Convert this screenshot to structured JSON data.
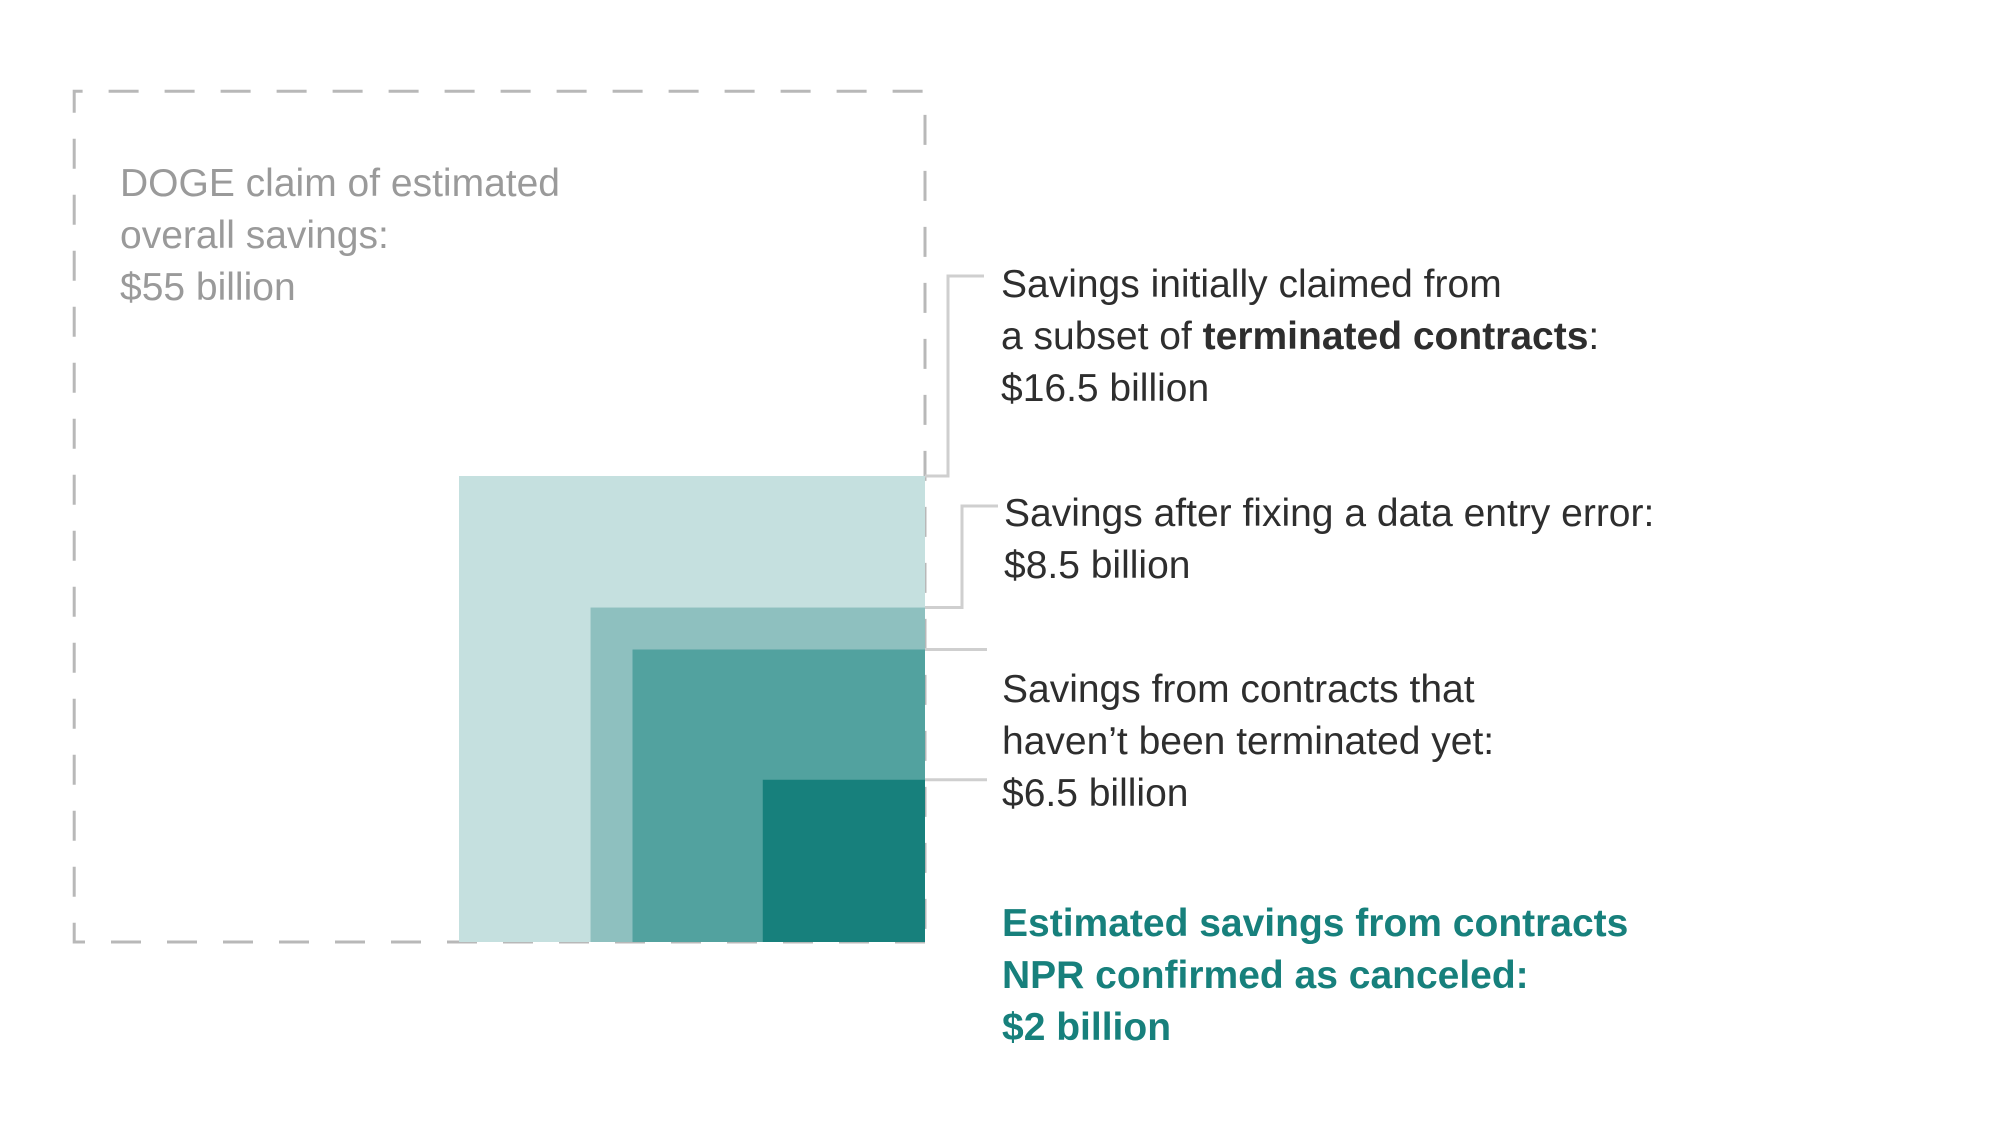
{
  "chart_data": {
    "type": "nested-squares",
    "title": "",
    "unit": "billion USD",
    "series": [
      {
        "name": "DOGE claim of estimated overall savings",
        "value": 55,
        "color": "#b8b8b8",
        "style": "dashed-outline",
        "label_lines": [
          "DOGE claim of estimated",
          "overall savings:"
        ],
        "value_text": "$55 billion"
      },
      {
        "name": "Savings initially claimed from a subset of terminated contracts",
        "value": 16.5,
        "color": "#c5e0df",
        "style": "fill",
        "label_lines": [
          "Savings initially claimed from"
        ],
        "label_line2_prefix": "a subset of ",
        "label_line2_bold": "terminated contracts",
        "label_line2_suffix": ":",
        "value_text": "$16.5 billion"
      },
      {
        "name": "Savings after fixing a data entry error",
        "value": 8.5,
        "color": "#8ec0bf",
        "style": "fill",
        "label_lines": [
          "Savings after fixing a data entry error:"
        ],
        "value_text": "$8.5 billion"
      },
      {
        "name": "Savings from contracts that haven't been terminated yet",
        "value": 6.5,
        "color": "#52a29f",
        "style": "fill",
        "label_lines": [
          "Savings from contracts that",
          "haven’t been terminated yet:"
        ],
        "value_text": "$6.5 billion"
      },
      {
        "name": "Estimated savings from contracts NPR confirmed as canceled",
        "value": 2,
        "color": "#17807c",
        "style": "fill",
        "label_lines": [
          "Estimated savings from contracts",
          "NPR confirmed as canceled:"
        ],
        "value_text": "$2 billion"
      }
    ],
    "colors": {
      "text": "#2e2e2e",
      "muted_text": "#9a9a9a",
      "highlight_text": "#17807c",
      "leader": "#cfcfcf"
    }
  }
}
